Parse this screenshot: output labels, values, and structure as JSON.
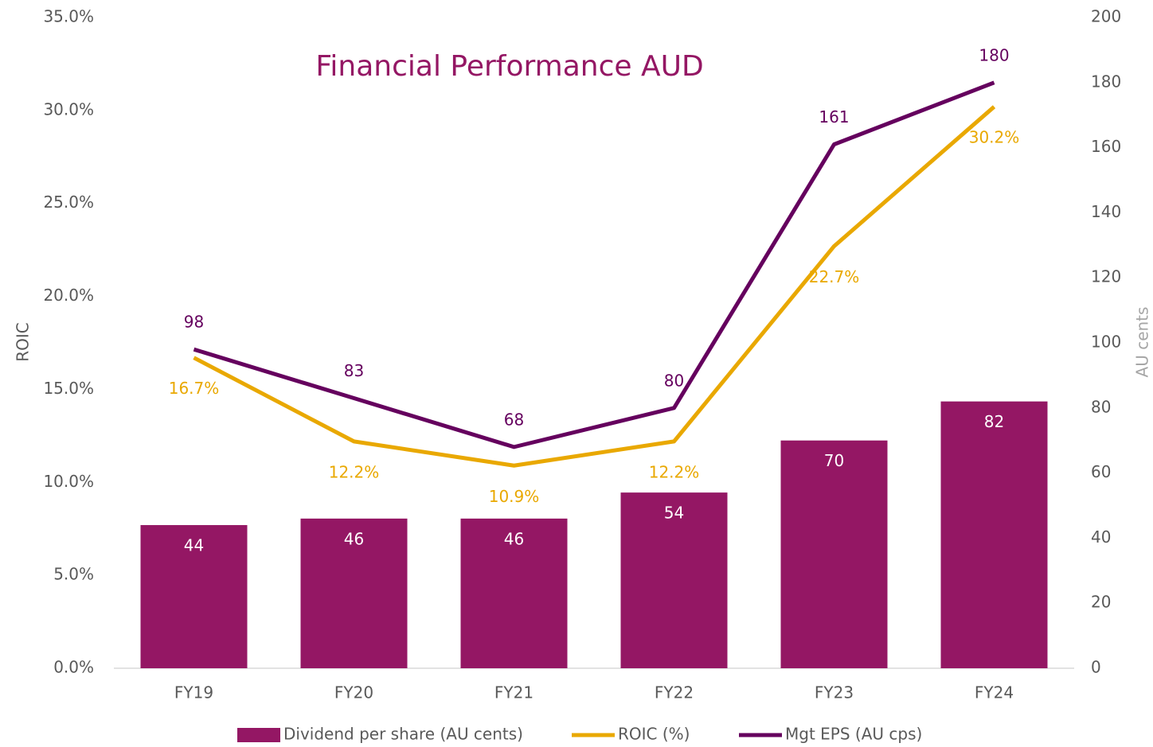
{
  "chart_data": {
    "type": "bar",
    "title": "Financial Performance AUD",
    "categories": [
      "FY19",
      "FY20",
      "FY21",
      "FY22",
      "FY23",
      "FY24"
    ],
    "ylabel": "ROIC",
    "y2label": "AU cents",
    "ylim": [
      0,
      35
    ],
    "yticks": [
      {
        "value": 0,
        "label": "0.0%"
      },
      {
        "value": 5,
        "label": "5.0%"
      },
      {
        "value": 10,
        "label": "10.0%"
      },
      {
        "value": 15,
        "label": "15.0%"
      },
      {
        "value": 20,
        "label": "20.0%"
      },
      {
        "value": 25,
        "label": "25.0%"
      },
      {
        "value": 30,
        "label": "30.0%"
      },
      {
        "value": 35,
        "label": "35.0%"
      }
    ],
    "y2lim": [
      0,
      200
    ],
    "y2ticks": [
      0,
      20,
      40,
      60,
      80,
      100,
      120,
      140,
      160,
      180,
      200
    ],
    "legend": "bottom",
    "series": [
      {
        "name": "Dividend per share (AU cents)",
        "type": "bar",
        "axis": "y2",
        "color": "#941764",
        "values": [
          44,
          46,
          46,
          54,
          70,
          82
        ]
      },
      {
        "name": "ROIC (%)",
        "type": "line",
        "axis": "y",
        "color": "#e9a800",
        "values": [
          16.7,
          12.2,
          10.9,
          12.2,
          22.7,
          30.2
        ],
        "value_labels": [
          "16.7%",
          "12.2%",
          "10.9%",
          "12.2%",
          "22.7%",
          "30.2%"
        ]
      },
      {
        "name": "Mgt EPS (AU cps)",
        "type": "line",
        "axis": "y2",
        "color": "#65005e",
        "values": [
          98,
          83,
          68,
          80,
          161,
          180
        ]
      }
    ]
  }
}
